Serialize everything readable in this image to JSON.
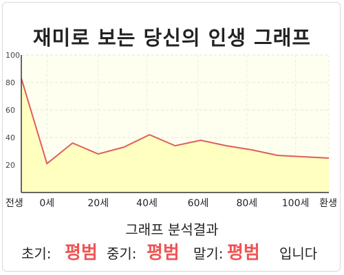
{
  "title": "재미로 보는 당신의 인생 그래프",
  "chart_data": {
    "type": "area",
    "x": [
      0,
      1,
      2,
      3,
      4,
      5,
      6,
      7,
      8,
      9,
      10,
      11,
      12
    ],
    "y": [
      83,
      21,
      36,
      28,
      33,
      42,
      34,
      38,
      34,
      31,
      27,
      26,
      25
    ],
    "x_ticks": [
      {
        "pos": 0,
        "label": "전생"
      },
      {
        "pos": 1,
        "label": "0세"
      },
      {
        "pos": 3,
        "label": "20세"
      },
      {
        "pos": 4.9,
        "label": "40세"
      },
      {
        "pos": 6.9,
        "label": "60세"
      },
      {
        "pos": 8.8,
        "label": "80세"
      },
      {
        "pos": 10.7,
        "label": "100세"
      },
      {
        "pos": 12,
        "label": "환생"
      }
    ],
    "y_ticks": [
      20,
      40,
      60,
      80,
      100
    ],
    "ylim": [
      0,
      100
    ],
    "xlim": [
      0,
      12
    ],
    "grid": true,
    "line_color": "#e05b5b",
    "fill_color": "#ffffc0",
    "plot_bg": "#fffff0"
  },
  "result": {
    "heading": "그래프 분석결과",
    "early_label": "초기:",
    "early_value": "평범",
    "mid_label": "중기:",
    "mid_value": "평범",
    "late_label": "말기:",
    "late_value": "평범",
    "suffix": "입니다",
    "value_color": "#f05454"
  }
}
